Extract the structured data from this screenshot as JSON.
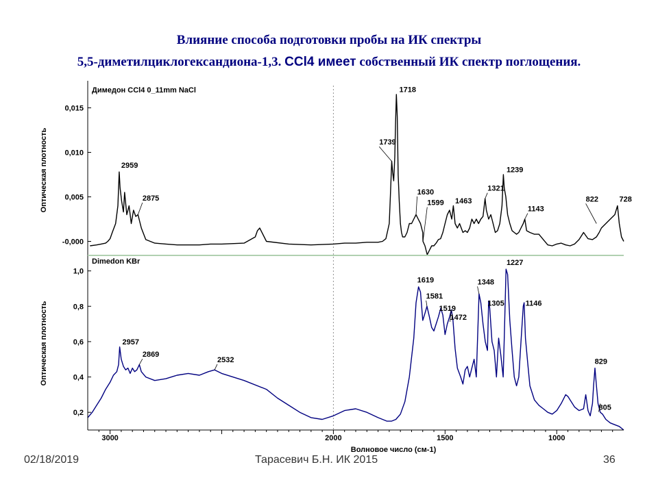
{
  "title_line1": "Влияние способа подготовки пробы на ИК спектры",
  "title_line2_a": "5,5-диметилциклогександиона-1,3. ",
  "title_line2_b": "CCl4 имеет",
  "title_line2_c": " собственный ИК спектр поглощения.",
  "footer": {
    "date": "02/18/2019",
    "author": "Тарасевич Б.Н. ИК 2015",
    "page": "36"
  },
  "colors": {
    "title": "#000080",
    "top_line": "#000000",
    "bottom_line": "#000080",
    "divider": "#b0d0b0",
    "vgrid": "#909090"
  },
  "chart_data": [
    {
      "type": "line",
      "label": "Димедон CCl4 0_11mm NaCl",
      "ylabel": "Оптическая плотность",
      "xlim": [
        3100,
        700
      ],
      "ylim": [
        -0.0015,
        0.0175
      ],
      "yticks": [
        {
          "v": 0.015,
          "t": "0,015"
        },
        {
          "v": 0.01,
          "t": "0,010"
        },
        {
          "v": 0.005,
          "t": "0,005"
        },
        {
          "v": 0.0,
          "t": "-0,000"
        }
      ],
      "x": [
        3090,
        3060,
        3040,
        3020,
        3010,
        3000,
        2990,
        2975,
        2965,
        2959,
        2955,
        2948,
        2940,
        2935,
        2925,
        2915,
        2905,
        2895,
        2885,
        2875,
        2860,
        2840,
        2800,
        2750,
        2700,
        2600,
        2550,
        2500,
        2400,
        2350,
        2340,
        2330,
        2300,
        2200,
        2100,
        2000,
        1950,
        1900,
        1850,
        1800,
        1780,
        1765,
        1750,
        1745,
        1739,
        1735,
        1730,
        1725,
        1722,
        1718,
        1714,
        1710,
        1705,
        1700,
        1695,
        1690,
        1680,
        1670,
        1660,
        1650,
        1640,
        1630,
        1620,
        1610,
        1600,
        1599,
        1590,
        1580,
        1570,
        1560,
        1550,
        1540,
        1530,
        1520,
        1510,
        1500,
        1490,
        1480,
        1470,
        1463,
        1455,
        1445,
        1435,
        1420,
        1410,
        1400,
        1390,
        1380,
        1370,
        1360,
        1350,
        1340,
        1330,
        1321,
        1315,
        1305,
        1295,
        1285,
        1275,
        1265,
        1255,
        1245,
        1239,
        1235,
        1228,
        1220,
        1210,
        1200,
        1190,
        1180,
        1170,
        1160,
        1150,
        1143,
        1135,
        1120,
        1100,
        1080,
        1060,
        1040,
        1020,
        1000,
        980,
        960,
        940,
        920,
        900,
        880,
        860,
        840,
        822,
        810,
        800,
        780,
        760,
        740,
        728,
        720,
        710,
        700
      ],
      "y": [
        -0.0005,
        -0.0004,
        -0.0003,
        -0.0002,
        0.0,
        0.0003,
        0.001,
        0.002,
        0.004,
        0.0078,
        0.006,
        0.0045,
        0.0033,
        0.0055,
        0.003,
        0.004,
        0.002,
        0.0035,
        0.0028,
        0.003,
        0.0015,
        0.0002,
        -0.0002,
        -0.0003,
        -0.0004,
        -0.0004,
        -0.0003,
        -0.0003,
        -0.0002,
        0.0005,
        0.0012,
        0.0015,
        0.0,
        -0.0003,
        -0.0004,
        -0.0003,
        -0.0002,
        -0.0002,
        -0.0001,
        -0.0001,
        0.0,
        0.0003,
        0.002,
        0.005,
        0.009,
        0.0078,
        0.0068,
        0.0095,
        0.013,
        0.0165,
        0.014,
        0.0075,
        0.0045,
        0.002,
        0.001,
        0.0005,
        0.0005,
        0.001,
        0.002,
        0.002,
        0.0025,
        0.003,
        0.0025,
        0.002,
        0.001,
        0.0,
        -0.0005,
        -0.0015,
        -0.001,
        -0.0005,
        -0.0005,
        -0.0002,
        0.0002,
        0.0003,
        0.001,
        0.002,
        0.003,
        0.0035,
        0.0025,
        0.004,
        0.002,
        0.0015,
        0.002,
        0.001,
        0.0012,
        0.001,
        0.0015,
        0.0025,
        0.002,
        0.0025,
        0.002,
        0.0025,
        0.0028,
        0.0048,
        0.0035,
        0.0025,
        0.003,
        0.002,
        0.001,
        0.0012,
        0.002,
        0.004,
        0.0075,
        0.006,
        0.005,
        0.003,
        0.002,
        0.0012,
        0.001,
        0.0008,
        0.001,
        0.0015,
        0.002,
        0.0025,
        0.0012,
        0.001,
        0.0008,
        0.0008,
        0.0002,
        -0.0004,
        -0.0005,
        -0.0003,
        -0.0002,
        -0.0004,
        -0.0005,
        -0.0003,
        0.0002,
        0.001,
        0.0003,
        0.0002,
        0.0005,
        0.001,
        0.0015,
        0.002,
        0.0025,
        0.003,
        0.004,
        0.002,
        0.0005,
        0.0
      ],
      "annotations": [
        {
          "t": "1718",
          "x": 1718,
          "y": 0.0165,
          "lx": 1705,
          "ly": 0.0167
        },
        {
          "t": "1739",
          "x": 1739,
          "y": 0.009,
          "lx": 1795,
          "ly": 0.0108
        },
        {
          "t": "2959",
          "x": 2959,
          "y": 0.0078,
          "lx": 2950,
          "ly": 0.0082
        },
        {
          "t": "2875",
          "x": 2875,
          "y": 0.003,
          "lx": 2855,
          "ly": 0.0045
        },
        {
          "t": "1630",
          "x": 1630,
          "y": 0.003,
          "lx": 1625,
          "ly": 0.0052
        },
        {
          "t": "1599",
          "x": 1599,
          "y": 0.0,
          "lx": 1580,
          "ly": 0.004
        },
        {
          "t": "1463",
          "x": 1463,
          "y": 0.004,
          "lx": 1455,
          "ly": 0.0042
        },
        {
          "t": "1321",
          "x": 1321,
          "y": 0.0048,
          "lx": 1310,
          "ly": 0.0056
        },
        {
          "t": "1239",
          "x": 1239,
          "y": 0.0075,
          "lx": 1225,
          "ly": 0.0077
        },
        {
          "t": "1143",
          "x": 1143,
          "y": 0.0025,
          "lx": 1130,
          "ly": 0.0033
        },
        {
          "t": "822",
          "x": 822,
          "y": 0.002,
          "lx": 870,
          "ly": 0.0044
        },
        {
          "t": "728",
          "x": 728,
          "y": 0.004,
          "lx": 720,
          "ly": 0.0044
        }
      ]
    },
    {
      "type": "line",
      "label": "Dimedon KBr",
      "ylabel": "Оптическая плотность",
      "xlabel": "Волновое число (см-1)",
      "xlim": [
        3100,
        700
      ],
      "ylim": [
        0.1,
        1.08
      ],
      "yticks": [
        {
          "v": 1.0,
          "t": "1,0"
        },
        {
          "v": 0.8,
          "t": "0,8"
        },
        {
          "v": 0.6,
          "t": "0,6"
        },
        {
          "v": 0.4,
          "t": "0,4"
        },
        {
          "v": 0.2,
          "t": "0,2"
        }
      ],
      "xticks": [
        {
          "v": 3000,
          "t": "3000"
        },
        {
          "v": 2000,
          "t": "2000"
        },
        {
          "v": 1500,
          "t": "1500"
        },
        {
          "v": 1000,
          "t": "1000"
        }
      ],
      "x": [
        3100,
        3080,
        3060,
        3040,
        3020,
        3000,
        2985,
        2970,
        2962,
        2957,
        2950,
        2940,
        2930,
        2920,
        2910,
        2900,
        2890,
        2880,
        2869,
        2860,
        2840,
        2800,
        2750,
        2700,
        2650,
        2600,
        2560,
        2532,
        2500,
        2450,
        2400,
        2300,
        2250,
        2200,
        2150,
        2100,
        2050,
        2000,
        1950,
        1900,
        1850,
        1800,
        1780,
        1760,
        1740,
        1720,
        1700,
        1680,
        1660,
        1640,
        1630,
        1619,
        1610,
        1600,
        1590,
        1581,
        1570,
        1560,
        1550,
        1540,
        1530,
        1519,
        1510,
        1500,
        1490,
        1480,
        1472,
        1465,
        1455,
        1445,
        1430,
        1420,
        1410,
        1400,
        1390,
        1380,
        1370,
        1360,
        1348,
        1340,
        1330,
        1320,
        1310,
        1305,
        1300,
        1290,
        1280,
        1270,
        1260,
        1250,
        1240,
        1235,
        1227,
        1220,
        1210,
        1200,
        1190,
        1180,
        1170,
        1160,
        1150,
        1146,
        1140,
        1130,
        1120,
        1100,
        1080,
        1060,
        1040,
        1020,
        1000,
        980,
        960,
        950,
        940,
        920,
        900,
        880,
        870,
        860,
        850,
        840,
        835,
        829,
        822,
        815,
        805,
        795,
        780,
        760,
        740,
        720,
        700
      ],
      "y": [
        0.17,
        0.2,
        0.24,
        0.28,
        0.33,
        0.37,
        0.41,
        0.43,
        0.47,
        0.57,
        0.5,
        0.46,
        0.44,
        0.45,
        0.42,
        0.45,
        0.43,
        0.44,
        0.47,
        0.43,
        0.4,
        0.38,
        0.39,
        0.41,
        0.42,
        0.41,
        0.43,
        0.44,
        0.42,
        0.4,
        0.38,
        0.33,
        0.28,
        0.24,
        0.2,
        0.17,
        0.16,
        0.18,
        0.21,
        0.22,
        0.2,
        0.17,
        0.16,
        0.15,
        0.15,
        0.16,
        0.19,
        0.26,
        0.4,
        0.62,
        0.82,
        0.91,
        0.88,
        0.72,
        0.76,
        0.8,
        0.74,
        0.68,
        0.66,
        0.7,
        0.74,
        0.79,
        0.75,
        0.64,
        0.7,
        0.74,
        0.78,
        0.73,
        0.56,
        0.45,
        0.4,
        0.36,
        0.44,
        0.46,
        0.4,
        0.45,
        0.5,
        0.4,
        0.87,
        0.82,
        0.7,
        0.6,
        0.55,
        0.83,
        0.79,
        0.6,
        0.55,
        0.4,
        0.62,
        0.52,
        0.4,
        0.62,
        1.01,
        0.98,
        0.72,
        0.55,
        0.4,
        0.35,
        0.4,
        0.6,
        0.8,
        0.82,
        0.62,
        0.48,
        0.35,
        0.27,
        0.24,
        0.22,
        0.2,
        0.19,
        0.21,
        0.25,
        0.3,
        0.29,
        0.27,
        0.23,
        0.21,
        0.22,
        0.3,
        0.21,
        0.18,
        0.25,
        0.35,
        0.45,
        0.35,
        0.25,
        0.2,
        0.19,
        0.16,
        0.14,
        0.13,
        0.12,
        0.1
      ],
      "annotations": [
        {
          "t": "2957",
          "x": 2957,
          "y": 0.57,
          "lx": 2945,
          "ly": 0.58
        },
        {
          "t": "2869",
          "x": 2869,
          "y": 0.47,
          "lx": 2855,
          "ly": 0.51
        },
        {
          "t": "2532",
          "x": 2532,
          "y": 0.44,
          "lx": 2520,
          "ly": 0.48
        },
        {
          "t": "1619",
          "x": 1619,
          "y": 0.91,
          "lx": 1625,
          "ly": 0.93
        },
        {
          "t": "1581",
          "x": 1581,
          "y": 0.8,
          "lx": 1585,
          "ly": 0.84
        },
        {
          "t": "1519",
          "x": 1519,
          "y": 0.79,
          "lx": 1527,
          "ly": 0.77
        },
        {
          "t": "1472",
          "x": 1472,
          "y": 0.78,
          "lx": 1478,
          "ly": 0.72
        },
        {
          "t": "1348",
          "x": 1348,
          "y": 0.87,
          "lx": 1355,
          "ly": 0.92
        },
        {
          "t": "1305",
          "x": 1305,
          "y": 0.83,
          "lx": 1310,
          "ly": 0.8
        },
        {
          "t": "1227",
          "x": 1227,
          "y": 1.01,
          "lx": 1225,
          "ly": 1.03
        },
        {
          "t": "1146",
          "x": 1146,
          "y": 0.82,
          "lx": 1140,
          "ly": 0.8
        },
        {
          "t": "829",
          "x": 829,
          "y": 0.45,
          "lx": 830,
          "ly": 0.47
        },
        {
          "t": "805",
          "x": 805,
          "y": 0.25,
          "lx": 812,
          "ly": 0.21
        }
      ]
    }
  ]
}
